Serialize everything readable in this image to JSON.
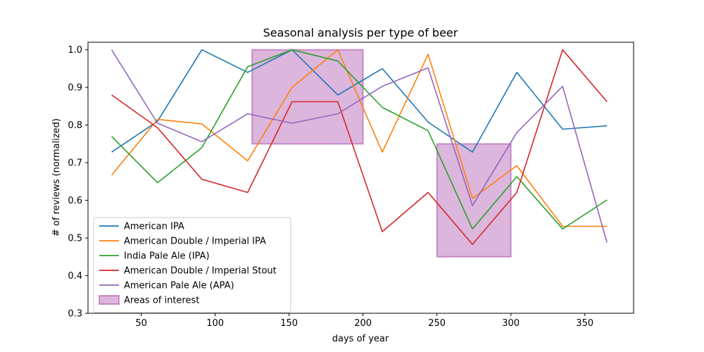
{
  "chart_data": {
    "type": "line",
    "title": "Seasonal analysis per type of beer",
    "xlabel": "days of year",
    "ylabel": "# of reviews (normalized)",
    "xlim": [
      14,
      383
    ],
    "ylim": [
      0.3,
      1.02
    ],
    "xticks": [
      50,
      100,
      150,
      200,
      250,
      300,
      350
    ],
    "yticks": [
      0.3,
      0.4,
      0.5,
      0.6,
      0.7,
      0.8,
      0.9,
      1.0
    ],
    "grid": false,
    "legend_position": "lower-left",
    "x": [
      30,
      61,
      91,
      122,
      152,
      183,
      213,
      244,
      274,
      304,
      335,
      365
    ],
    "series": [
      {
        "name": "American IPA",
        "color": "#1f77b4",
        "values": [
          0.728,
          0.81,
          1.0,
          0.94,
          1.0,
          0.88,
          0.95,
          0.808,
          0.728,
          0.94,
          0.789,
          0.798
        ]
      },
      {
        "name": "American Double / Imperial IPA",
        "color": "#ff7f0e",
        "values": [
          0.667,
          0.815,
          0.803,
          0.705,
          0.9,
          1.0,
          0.728,
          0.988,
          0.605,
          0.692,
          0.531,
          0.531
        ]
      },
      {
        "name": "India Pale Ale (IPA)",
        "color": "#2ca02c",
        "values": [
          0.77,
          0.647,
          0.74,
          0.955,
          1.0,
          0.97,
          0.847,
          0.785,
          0.524,
          0.663,
          0.524,
          0.601
        ]
      },
      {
        "name": "American Double / Imperial Stout",
        "color": "#d62728",
        "values": [
          0.88,
          0.793,
          0.656,
          0.621,
          0.862,
          0.862,
          0.517,
          0.621,
          0.483,
          0.621,
          1.0,
          0.862
        ]
      },
      {
        "name": "American Pale Ale (APA)",
        "color": "#9467bd",
        "values": [
          1.0,
          0.805,
          0.756,
          0.83,
          0.805,
          0.83,
          0.903,
          0.952,
          0.586,
          0.78,
          0.903,
          0.488
        ]
      }
    ],
    "areas": {
      "name": "Areas of interest",
      "color": "#9c2f9c",
      "regions": [
        {
          "x": [
            125,
            200
          ],
          "y": [
            0.75,
            1.0
          ]
        },
        {
          "x": [
            250,
            300
          ],
          "y": [
            0.45,
            0.75
          ]
        }
      ]
    }
  }
}
